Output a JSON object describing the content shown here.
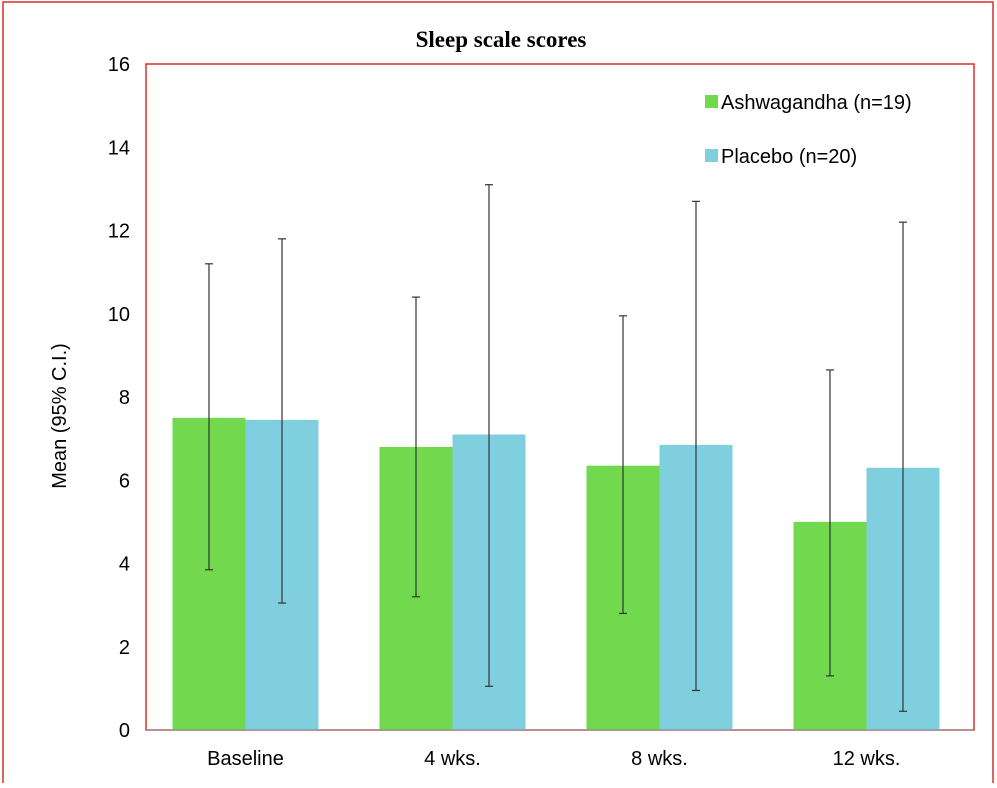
{
  "chart_data": {
    "type": "bar",
    "title": "Sleep scale scores",
    "xlabel": "",
    "ylabel": "Mean (95% C.I.)",
    "ylim": [
      0,
      16
    ],
    "yticks": [
      0,
      2,
      4,
      6,
      8,
      10,
      12,
      14,
      16
    ],
    "grid": false,
    "legend_position": "top-right",
    "categories": [
      "Baseline",
      "4 wks.",
      "8 wks.",
      "12 wks."
    ],
    "series": [
      {
        "name": "Ashwagandha (n=19)",
        "color": "#72d84e",
        "values": [
          7.5,
          6.8,
          6.35,
          5.0
        ],
        "ci_low": [
          3.85,
          3.2,
          2.8,
          1.3
        ],
        "ci_high": [
          11.2,
          10.4,
          9.95,
          8.65
        ]
      },
      {
        "name": "Placebo (n=20)",
        "color": "#80cfdf",
        "values": [
          7.45,
          7.1,
          6.85,
          6.3
        ],
        "ci_low": [
          3.05,
          1.05,
          0.95,
          0.45
        ],
        "ci_high": [
          11.8,
          13.1,
          12.7,
          12.2
        ]
      }
    ],
    "frame_color": "#d9302c",
    "error_bar_color": "#333333"
  }
}
